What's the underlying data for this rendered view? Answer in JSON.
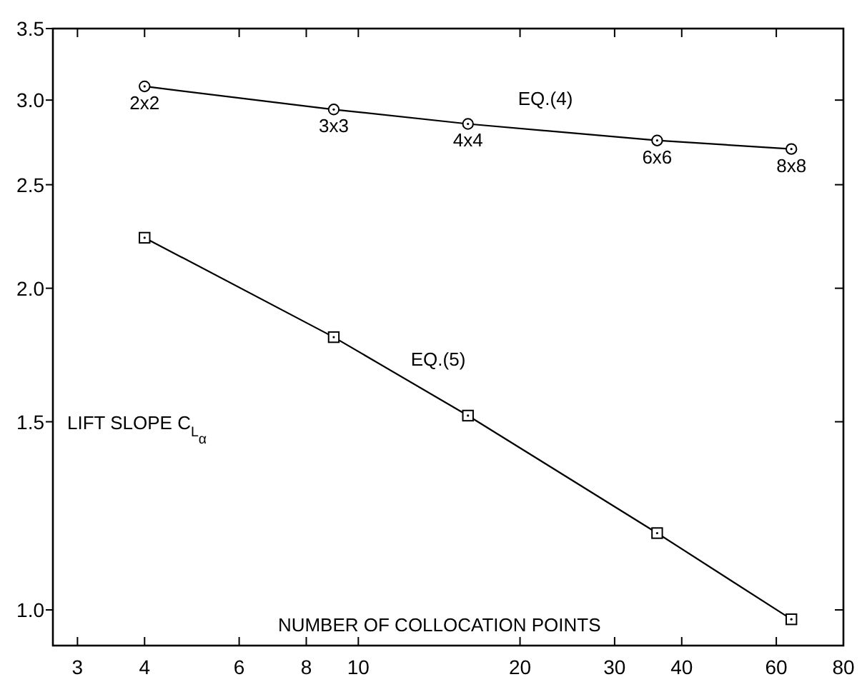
{
  "chart_data": {
    "type": "line",
    "xlabel": "NUMBER OF COLLOCATION POINTS",
    "ylabel": "LIFT SLOPE C$_{L}$$_{α}$",
    "log": "xy",
    "grid": false,
    "line_style": "solid",
    "x": [
      4,
      9,
      16,
      36,
      64
    ],
    "xlim": [
      2.7,
      80
    ],
    "xticks": [
      3,
      4,
      6,
      8,
      10,
      20,
      30,
      40,
      60,
      80
    ],
    "ylim": [
      0.926,
      3.5
    ],
    "yticks": [
      {
        "value": 1,
        "label": "1.0"
      },
      1.5,
      {
        "value": 2,
        "label": "2.0"
      },
      2.5,
      {
        "value": 3,
        "label": "3.0"
      },
      3.5
    ],
    "series": [
      {
        "name": "EQ.(4)",
        "color": "#000000",
        "marker": "circle",
        "values": [
          3.09,
          2.94,
          2.85,
          2.75,
          2.7
        ]
      },
      {
        "name": "EQ.(5)",
        "color": "#000000",
        "marker": "square",
        "values": [
          2.23,
          1.8,
          1.52,
          1.18,
          0.98
        ]
      }
    ],
    "annotations": [
      {
        "text": "2x2",
        "x": 4,
        "y": 3.09
      },
      {
        "text": "3x3",
        "x": 9,
        "y": 2.94
      },
      {
        "text": "4x4",
        "x": 16,
        "y": 2.85
      },
      {
        "text": "6x6",
        "x": 36,
        "y": 2.75
      },
      {
        "text": "8x8",
        "x": 64,
        "y": 2.7
      }
    ]
  }
}
